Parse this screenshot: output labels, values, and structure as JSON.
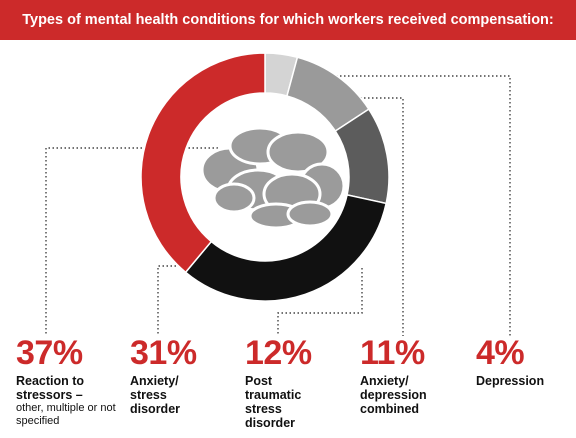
{
  "chart_data": {
    "type": "pie",
    "title": "Types of mental health conditions for which workers received compensation:",
    "slices": [
      {
        "value": 37,
        "label_pct": "37%",
        "label": "Reaction to stressors –",
        "sublabel": "other, multiple or not specified",
        "color": "#cc2a2a"
      },
      {
        "value": 31,
        "label_pct": "31%",
        "label": "Anxiety/ stress disorder",
        "sublabel": "",
        "color": "#111111"
      },
      {
        "value": 12,
        "label_pct": "12%",
        "label": "Post traumatic stress disorder",
        "sublabel": "",
        "color": "#5c5c5c"
      },
      {
        "value": 11,
        "label_pct": "11%",
        "label": "Anxiety/ depression combined",
        "sublabel": "",
        "color": "#9a9a9a"
      },
      {
        "value": 4,
        "label_pct": "4%",
        "label": "Depression",
        "sublabel": "",
        "color": "#d4d4d4"
      }
    ],
    "center_icon": "brain-icon"
  }
}
